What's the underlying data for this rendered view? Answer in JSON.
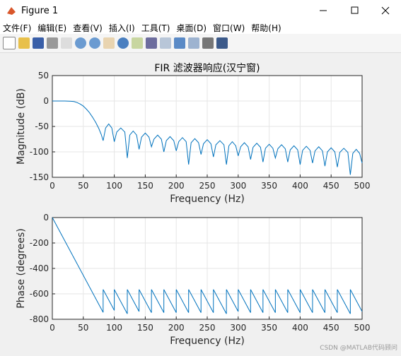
{
  "window": {
    "title": "Figure 1"
  },
  "menu": [
    "文件(F)",
    "编辑(E)",
    "查看(V)",
    "插入(I)",
    "工具(T)",
    "桌面(D)",
    "窗口(W)",
    "帮助(H)"
  ],
  "watermark": "CSDN @MATLAB代码顾问",
  "chart_data": [
    {
      "type": "line",
      "title": "FIR 滤波器响应(汉宁窗)",
      "x_label": "Frequency (Hz)",
      "y_label": "Magnitude (dB)",
      "xlim": [
        0,
        500
      ],
      "xticks": [
        0,
        50,
        100,
        150,
        200,
        250,
        300,
        350,
        400,
        450,
        500
      ],
      "ylim": [
        -150,
        50
      ],
      "yticks": [
        -150,
        -100,
        -50,
        0,
        50
      ],
      "grid": true,
      "series": [
        {
          "color": "#0072bd",
          "x": [
            0,
            10,
            20,
            30,
            35,
            40,
            45,
            50,
            55,
            60,
            65,
            70,
            75,
            79,
            82,
            86,
            91,
            96,
            100,
            104,
            110.5,
            117,
            121,
            125,
            130.5,
            136,
            140,
            144,
            150,
            156,
            160,
            164,
            170,
            176,
            180,
            184,
            190,
            196,
            200,
            204,
            210,
            216,
            220,
            224,
            230,
            236,
            240,
            244,
            250,
            256,
            260,
            264,
            270.5,
            277,
            281,
            285,
            290.5,
            296,
            300,
            304,
            310,
            316,
            320,
            324,
            330,
            336,
            340,
            344,
            350,
            356,
            360,
            364,
            370,
            376,
            380,
            384,
            390,
            396,
            400,
            404,
            410,
            416,
            420,
            424,
            430,
            436,
            440,
            444,
            450,
            456,
            460,
            464,
            470.5,
            477,
            481,
            485,
            490.5,
            496,
            500
          ],
          "values": [
            0,
            0,
            0,
            -0.5,
            -1,
            -3,
            -6,
            -10,
            -16,
            -23,
            -32,
            -42,
            -54,
            -66,
            -78,
            -53,
            -45,
            -53,
            -80,
            -61,
            -53,
            -61,
            -112,
            -67,
            -59,
            -67,
            -95,
            -71,
            -63,
            -71,
            -90,
            -75,
            -67,
            -75,
            -100,
            -78,
            -70,
            -78,
            -98,
            -80,
            -72,
            -80,
            -125,
            -82,
            -74,
            -82,
            -105,
            -84,
            -76,
            -84,
            -110,
            -86,
            -78,
            -86,
            -125,
            -88,
            -80,
            -88,
            -108,
            -90,
            -82,
            -90,
            -115,
            -91,
            -83,
            -91,
            -120,
            -93,
            -85,
            -93,
            -112,
            -94,
            -86,
            -94,
            -120,
            -96,
            -88,
            -96,
            -125,
            -97,
            -89,
            -97,
            -122,
            -98,
            -90,
            -98,
            -128,
            -100,
            -92,
            -100,
            -130,
            -101,
            -93,
            -101,
            -145,
            -103,
            -95,
            -103,
            -122
          ]
        }
      ]
    },
    {
      "type": "line",
      "x_label": "Frequency (Hz)",
      "y_label": "Phase (degrees)",
      "xlim": [
        0,
        500
      ],
      "xticks": [
        0,
        50,
        100,
        150,
        200,
        250,
        300,
        350,
        400,
        450,
        500
      ],
      "ylim": [
        -800,
        0
      ],
      "yticks": [
        -800,
        -600,
        -400,
        -200,
        0
      ],
      "grid": true,
      "series": [
        {
          "color": "#0072bd",
          "x": [
            0,
            82,
            82,
            100,
            100,
            121,
            121,
            140,
            140,
            160,
            160,
            180,
            180,
            200,
            200,
            220,
            220,
            240,
            240,
            260,
            260,
            281,
            281,
            300,
            300,
            320,
            320,
            340,
            340,
            360,
            360,
            380,
            380,
            400,
            400,
            420,
            420,
            440,
            440,
            460,
            460,
            481,
            481,
            500
          ],
          "values": [
            0,
            -746,
            -566,
            -730,
            -566,
            -757,
            -566,
            -739,
            -566,
            -748,
            -566,
            -748,
            -566,
            -748,
            -566,
            -748,
            -566,
            -748,
            -566,
            -748,
            -566,
            -757,
            -566,
            -739,
            -566,
            -748,
            -566,
            -748,
            -566,
            -748,
            -566,
            -748,
            -566,
            -748,
            -566,
            -748,
            -566,
            -748,
            -566,
            -748,
            -566,
            -757,
            -566,
            -739
          ]
        }
      ]
    }
  ]
}
